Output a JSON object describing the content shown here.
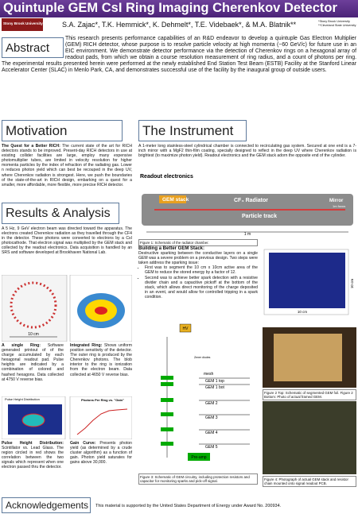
{
  "header": {
    "title": "Quintuple GEM CsI Ring Imaging Cherenkov Detector",
    "authors": "S.A. Zajac*, T.K. Hemmick*, K. Dehmelt*, T.E. Videbaek*, & M.A. Blatnik**",
    "affiliations": [
      "*Stony Brook University",
      "**Cleveland State University"
    ],
    "logo": "Stony Brook University"
  },
  "abstract": {
    "heading": "Abstract",
    "text": "This research presents performance capabilities of an R&D endeavor to develop a quintuple Gas Electron Multiplier (GEM) RICH detector, whose purpose is to resolve particle velocity at high momenta (~60 GeV/c) for future use in an EIC environment. We demonstrate detector performance via the detection of Cherenkov rings on a hexagonal array of readout pads, from which we obtain a course resolution measurement of ring radius, and a count of photons per ring. The experimental results presented herein were performed at the newly established End Station Test Beam (ESTB) Facility at the Stanford Linear Accelerator Center (SLAC) in Menlo Park, CA, and demonstrates successful use of the facility by the inaugural group of outside users."
  },
  "motivation": {
    "heading": "Motivation",
    "lead": "The Quest for a Better RICH:",
    "text": "The current state of the art for RICH detectors stands to be improved. Present-day RICH detectors in use at existing collider facilities are large, employ many expensive photomultiplier tubes, are limited in velocity resolution for higher momenta particles by the index of refraction of the radiating gas. Lower n reduces photon yield which can best be recouped in the deep UV, where Cherenkov radiation is strongest. Here, we push the boundaries of the state-of-the-art in RICH design, embarking on a quest for a smaller, more affordable, more flexible, more precise RICH detector."
  },
  "results": {
    "heading": "Results & Analysis",
    "text": "A 5 Hz, 9 GeV electron beam was directed toward the apparatus. The electrons created Cherenkov radiation as they travelled through the CF4 in the detector. These photons were converted to electrons by a CsI photocathode. That electron signal was multiplied by the GEM stack and collected by the readout electronics. Data acquisition is handled by an SRS and software developed at Brookhaven National Lab.",
    "ring_scale": "10 cm",
    "single": {
      "lead": "A single Ring:",
      "text": "Software generated printout of of the charge accumulated by each hexagonal readout pad. Pulse heights are indicated by a combination of colored and hashed hexagons. Data collected at 4750 V reverse bias."
    },
    "integrated": {
      "lead": "Integrated Ring:",
      "text": "Shows uniform position sensitivity of the detector. The outer ring is produced by the Cherenkov photons. The blob interior to the ring is ionization from the electron beam. Data collected at 4650 V reverse bias."
    },
    "pulse": {
      "title": "Pulse Height Distribution",
      "lead": "Pulse Height Distribution:",
      "text": "Scintillator vs. Lead Glass. The region circled in red shows the correlation between the two signals which represent when one electron passed thru the detector."
    },
    "gain": {
      "title": "Photons Per Ring vs. \"Gain\"",
      "lead": "Gain Curve:",
      "text": "Presents photon yield (as determined by a crude cluster algorithm) as a function of gain. Photon yield saturates for gains above 30,000."
    }
  },
  "instrument": {
    "heading": "The Instrument",
    "text": "A 1-meter long stainless-steel cylindrical chamber is connected to recirculating gas system. Secured at one end is a 7-inch mirror with a MgF2 thin-film coating, specially designed to reflect in the deep UV where Cherenkov radiation is brightest (to maximize photon yield). Readout electronics and the GEM stack adorn the opposite end of the cylinder.",
    "figure1": {
      "readout": "Readout electronics",
      "gem": "GEM stack",
      "radiator": "CF₄ Radiator",
      "mirror": "Mirror",
      "focus": "1m focus",
      "track": "Particle track",
      "length": "1 m",
      "caption": "Figure 1: Schematic of the radiator chamber."
    }
  },
  "building": {
    "lead": "Building a Better GEM Stack:",
    "text": "Destructive sparking between the conductive layers on a single GEM was a severe problem on a previous design. Two steps were taken address the sparking issue:",
    "bullets": [
      "First was to segment the 10 cm x 10cm active area of the GEM to reduce the stored energy by a factor of 12.",
      "Second was to achieve better spark detection with a resistive divider chain and a capacitive pickoff at the bottom of the stack, which allows direct monitoring of the charge deposited in an event, and would allow for controlled tripping in a spark condition."
    ]
  },
  "figure2": {
    "width": "10 cm",
    "height": "10 cm",
    "caption": "Figure 2 Top: Schematic of segmented GEM foil. Figure 2 Bottom: Photo of actual framed GEM."
  },
  "figure3": {
    "hv": "HV",
    "mesh": "mesh",
    "zener": "Zener diodes",
    "gems": [
      "GEM 1 top",
      "GEM 1 bot",
      "GEM 2",
      "GEM 3",
      "GEM 4",
      "GEM 5"
    ],
    "preamp": "Pre-amp",
    "caption": "Figure 3: Schematic of GEM circuitry, including protection resistors and capacitor for monitoring sparks and pick-off signal."
  },
  "figure4": {
    "caption": "Figure 4: Photograph of actual GEM stack and resistor chain mounted onto signal readout PCB."
  },
  "acknowledgements": {
    "heading": "Acknowledgements",
    "text": "This material is supported by the United States Department of Energy under Award No. 200934."
  }
}
